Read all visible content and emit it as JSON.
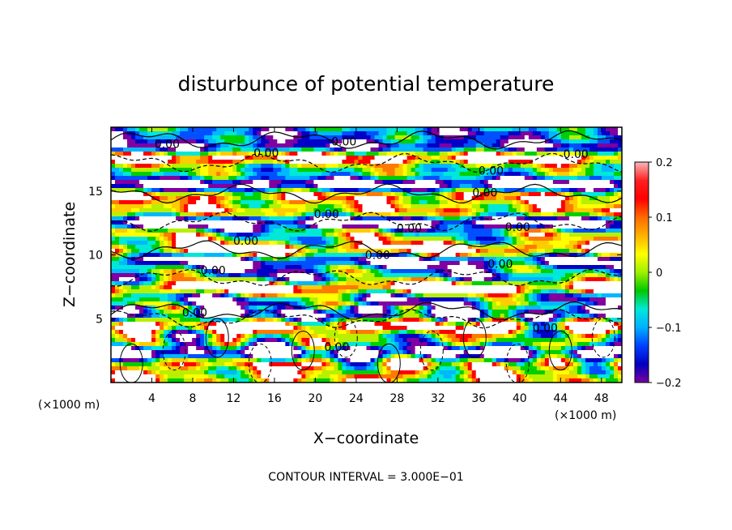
{
  "chart_data": {
    "type": "heatmap",
    "title": "disturbunce of potential temperature",
    "xlabel": "X−coordinate",
    "ylabel": "Z−coordinate",
    "x_unit": "(×1000 m)",
    "z_unit": "(×1000 m)",
    "xlim": [
      0,
      50
    ],
    "ylim": [
      0,
      20
    ],
    "x_ticks": [
      4,
      8,
      12,
      16,
      20,
      24,
      28,
      32,
      36,
      40,
      44,
      48
    ],
    "y_ticks": [
      5,
      10,
      15
    ],
    "colorbar": {
      "min": -0.2,
      "max": 0.2,
      "ticks": [
        0.2,
        0.1,
        0,
        -0.1,
        -0.2
      ],
      "tick_labels": [
        "0.2",
        "0.1",
        "0",
        "−0.1",
        "−0.2"
      ],
      "colors": [
        "#ffffff",
        "#f7a7a7",
        "#ff0000",
        "#ff7a00",
        "#ffcc00",
        "#ffff00",
        "#b7f000",
        "#00d000",
        "#00e8d8",
        "#00b8ff",
        "#0050ff",
        "#0000c8",
        "#8000a0"
      ]
    },
    "contour_label": "0.00",
    "contour_labels": [
      {
        "x": 5.5,
        "z": 18.7
      },
      {
        "x": 15.2,
        "z": 18.0
      },
      {
        "x": 22.8,
        "z": 18.9
      },
      {
        "x": 45.5,
        "z": 17.9
      },
      {
        "x": 37.2,
        "z": 16.6
      },
      {
        "x": 36.6,
        "z": 14.9
      },
      {
        "x": 21.1,
        "z": 13.2
      },
      {
        "x": 29.2,
        "z": 12.1
      },
      {
        "x": 39.8,
        "z": 12.2
      },
      {
        "x": 13.2,
        "z": 11.1
      },
      {
        "x": 10.0,
        "z": 8.8
      },
      {
        "x": 26.1,
        "z": 10.0
      },
      {
        "x": 38.1,
        "z": 9.3
      },
      {
        "x": 8.2,
        "z": 5.5
      },
      {
        "x": 42.5,
        "z": 4.3
      },
      {
        "x": 22.1,
        "z": 2.8
      }
    ],
    "contour_interval_text": "CONTOUR INTERVAL = 3.000E−01"
  },
  "colors": {
    "background": "#ffffff",
    "frame": "#000000"
  }
}
